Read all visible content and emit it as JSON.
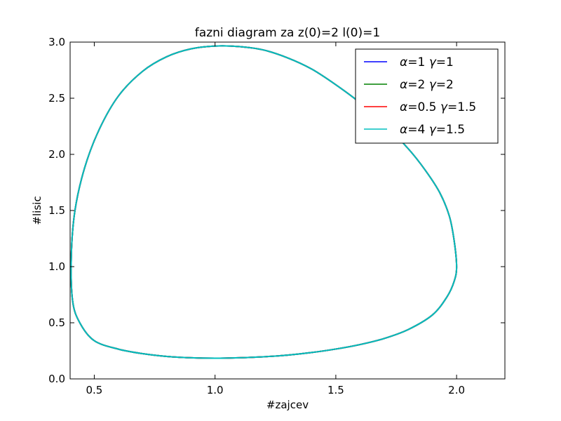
{
  "chart_data": {
    "type": "line",
    "title": "fazni diagram za z(0)=2  l(0)=1",
    "xlabel": "#zajcev",
    "ylabel": "#lisic",
    "xlim": [
      0.4,
      2.2
    ],
    "ylim": [
      0.0,
      3.0
    ],
    "xticks": [
      0.5,
      1.0,
      1.5,
      2.0
    ],
    "yticks": [
      0.0,
      0.5,
      1.0,
      1.5,
      2.0,
      2.5,
      3.0
    ],
    "xtick_labels": [
      "0.5",
      "1.0",
      "1.5",
      "2.0"
    ],
    "ytick_labels": [
      "0.0",
      "0.5",
      "1.0",
      "1.5",
      "2.0",
      "2.5",
      "3.0"
    ],
    "grid": false,
    "legend_position": "top-right",
    "series": [
      {
        "name": "α=1 γ=1",
        "greek1": "α",
        "val1": "=1 ",
        "greek2": "γ",
        "val2": "=1",
        "color": "#0000ff"
      },
      {
        "name": "α=2 γ=2",
        "greek1": "α",
        "val1": "=2 ",
        "greek2": "γ",
        "val2": "=2",
        "color": "#008000"
      },
      {
        "name": "α=0.5 γ=1.5",
        "greek1": "α",
        "val1": "=0.5 ",
        "greek2": "γ",
        "val2": "=1.5",
        "color": "#ff0000"
      },
      {
        "name": "α=4 γ=1.5",
        "greek1": "α",
        "val1": "=4 ",
        "greek2": "γ",
        "val2": "=1.5",
        "color": "#00bfbf"
      }
    ],
    "orbit": {
      "description": "closed phase orbit shared by all series",
      "x": [
        2.0,
        1.99,
        1.97,
        1.93,
        1.87,
        1.8,
        1.7,
        1.6,
        1.5,
        1.4,
        1.3,
        1.2,
        1.1,
        1.0,
        0.9,
        0.8,
        0.7,
        0.6,
        0.52,
        0.46,
        0.42,
        0.405,
        0.41,
        0.44,
        0.5,
        0.6,
        0.7,
        0.8,
        0.9,
        1.0,
        1.1,
        1.2,
        1.3,
        1.4,
        1.5,
        1.6,
        1.7,
        1.8,
        1.9,
        1.96,
        1.99,
        2.0
      ],
      "y": [
        1.0,
        1.23,
        1.45,
        1.66,
        1.86,
        2.05,
        2.27,
        2.46,
        2.62,
        2.76,
        2.86,
        2.93,
        2.96,
        2.965,
        2.94,
        2.87,
        2.74,
        2.52,
        2.22,
        1.88,
        1.5,
        1.1,
        0.7,
        0.5,
        0.34,
        0.265,
        0.225,
        0.2,
        0.188,
        0.184,
        0.188,
        0.197,
        0.212,
        0.235,
        0.266,
        0.306,
        0.36,
        0.44,
        0.57,
        0.73,
        0.87,
        1.0
      ]
    }
  }
}
